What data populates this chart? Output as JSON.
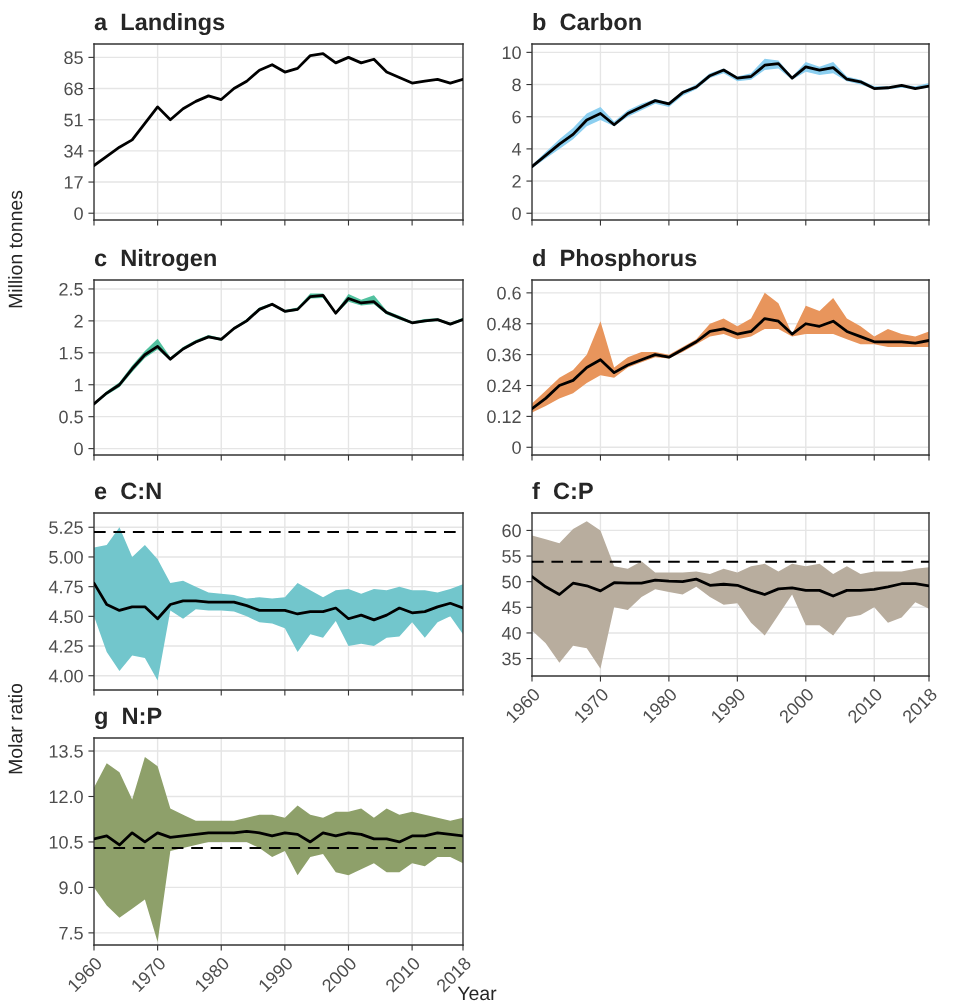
{
  "chart_data": [
    {
      "type": "line",
      "title": "a  Landings",
      "ylabel": "Million tonnes",
      "x": [
        1960,
        1962,
        1964,
        1966,
        1968,
        1970,
        1972,
        1974,
        1976,
        1978,
        1980,
        1982,
        1984,
        1986,
        1988,
        1990,
        1992,
        1994,
        1996,
        1998,
        2000,
        2002,
        2004,
        2006,
        2008,
        2010,
        2012,
        2014,
        2016,
        2018
      ],
      "xlim": [
        1960,
        2018
      ],
      "xticks": [
        {
          "value": 1960,
          "label": null
        },
        {
          "value": 1970,
          "label": null
        },
        {
          "value": 1980,
          "label": null
        },
        {
          "value": 1990,
          "label": null
        },
        {
          "value": 2000,
          "label": null
        },
        {
          "value": 2010,
          "label": null
        },
        {
          "value": 2018,
          "label": null
        }
      ],
      "ylim": [
        -3.7,
        92.3
      ],
      "yticks": [
        0,
        17,
        34,
        51,
        68,
        85
      ],
      "grid": true,
      "tick_labels": "y",
      "series": [
        {
          "color": "#000000",
          "values": [
            26,
            31,
            36,
            40,
            49,
            58,
            51,
            57,
            61,
            64,
            62,
            68,
            72,
            78,
            81,
            77,
            79,
            86,
            87,
            82,
            85,
            82,
            84,
            77,
            74,
            71,
            72,
            73,
            71,
            73
          ]
        }
      ]
    },
    {
      "type": "line",
      "title": "b  Carbon",
      "x": [
        1960,
        1962,
        1964,
        1966,
        1968,
        1970,
        1972,
        1974,
        1976,
        1978,
        1980,
        1982,
        1984,
        1986,
        1988,
        1990,
        1992,
        1994,
        1996,
        1998,
        2000,
        2002,
        2004,
        2006,
        2008,
        2010,
        2012,
        2014,
        2016,
        2018
      ],
      "xlim": [
        1960,
        2018
      ],
      "xticks": [
        {
          "value": 1960,
          "label": null
        },
        {
          "value": 1970,
          "label": null
        },
        {
          "value": 1980,
          "label": null
        },
        {
          "value": 1990,
          "label": null
        },
        {
          "value": 2000,
          "label": null
        },
        {
          "value": 2010,
          "label": null
        },
        {
          "value": 2018,
          "label": null
        }
      ],
      "ylim": [
        -0.42,
        10.52
      ],
      "yticks": [
        0,
        2,
        4,
        6,
        8,
        10
      ],
      "grid": true,
      "tick_labels": "y",
      "series": [
        {
          "color": "#000000",
          "lower": [
            2.8,
            3.4,
            4.0,
            4.6,
            5.4,
            5.8,
            5.4,
            6.0,
            6.4,
            6.8,
            6.6,
            7.3,
            7.7,
            8.4,
            8.7,
            8.2,
            8.3,
            8.9,
            9.0,
            8.3,
            8.8,
            8.6,
            8.7,
            8.2,
            8.0,
            7.7,
            7.7,
            7.8,
            7.7,
            7.8
          ],
          "upper": [
            3.0,
            3.8,
            4.6,
            5.3,
            6.2,
            6.6,
            5.7,
            6.4,
            6.8,
            7.1,
            6.9,
            7.6,
            8.0,
            8.7,
            9.0,
            8.5,
            8.7,
            9.6,
            9.5,
            8.5,
            9.4,
            9.1,
            9.4,
            8.5,
            8.3,
            7.9,
            7.9,
            8.0,
            7.9,
            8.1
          ],
          "values": [
            2.9,
            3.6,
            4.3,
            4.9,
            5.8,
            6.2,
            5.5,
            6.2,
            6.6,
            7.0,
            6.8,
            7.5,
            7.85,
            8.55,
            8.9,
            8.4,
            8.5,
            9.2,
            9.3,
            8.4,
            9.1,
            8.9,
            9.05,
            8.33,
            8.17,
            7.75,
            7.8,
            7.95,
            7.75,
            7.9
          ]
        }
      ]
    },
    {
      "type": "line",
      "title": "c  Nitrogen",
      "x": [
        1960,
        1962,
        1964,
        1966,
        1968,
        1970,
        1972,
        1974,
        1976,
        1978,
        1980,
        1982,
        1984,
        1986,
        1988,
        1990,
        1992,
        1994,
        1996,
        1998,
        2000,
        2002,
        2004,
        2006,
        2008,
        2010,
        2012,
        2014,
        2016,
        2018
      ],
      "xlim": [
        1960,
        2018
      ],
      "xticks": [
        {
          "value": 1960,
          "label": null
        },
        {
          "value": 1970,
          "label": null
        },
        {
          "value": 1980,
          "label": null
        },
        {
          "value": 1990,
          "label": null
        },
        {
          "value": 2000,
          "label": null
        },
        {
          "value": 2010,
          "label": null
        },
        {
          "value": 2018,
          "label": null
        }
      ],
      "ylim": [
        -0.1,
        2.64
      ],
      "yticks": [
        0,
        0.5,
        1,
        1.5,
        2,
        2.5
      ],
      "grid": true,
      "tick_labels": "y",
      "series": [
        {
          "color": "#000000",
          "lower": [
            0.68,
            0.84,
            0.96,
            1.2,
            1.42,
            1.55,
            1.38,
            1.54,
            1.65,
            1.73,
            1.69,
            1.86,
            1.98,
            2.16,
            2.24,
            2.13,
            2.16,
            2.35,
            2.36,
            2.1,
            2.3,
            2.24,
            2.26,
            2.1,
            2.02,
            1.95,
            1.98,
            2.0,
            1.93,
            2.0
          ],
          "upper": [
            0.72,
            0.9,
            1.04,
            1.3,
            1.53,
            1.72,
            1.43,
            1.59,
            1.7,
            1.78,
            1.73,
            1.9,
            2.03,
            2.21,
            2.28,
            2.17,
            2.21,
            2.43,
            2.43,
            2.14,
            2.42,
            2.33,
            2.4,
            2.16,
            2.08,
            1.99,
            2.03,
            2.04,
            1.97,
            2.05
          ],
          "values": [
            0.7,
            0.87,
            1.0,
            1.25,
            1.47,
            1.6,
            1.4,
            1.56,
            1.67,
            1.75,
            1.71,
            1.88,
            2.0,
            2.18,
            2.26,
            2.15,
            2.18,
            2.38,
            2.4,
            2.12,
            2.35,
            2.28,
            2.3,
            2.13,
            2.05,
            1.97,
            2.0,
            2.02,
            1.95,
            2.02
          ]
        }
      ]
    },
    {
      "type": "line",
      "title": "d  Phosphorus",
      "x": [
        1960,
        1962,
        1964,
        1966,
        1968,
        1970,
        1972,
        1974,
        1976,
        1978,
        1980,
        1982,
        1984,
        1986,
        1988,
        1990,
        1992,
        1994,
        1996,
        1998,
        2000,
        2002,
        2004,
        2006,
        2008,
        2010,
        2012,
        2014,
        2016,
        2018
      ],
      "xlim": [
        1960,
        2018
      ],
      "xticks": [
        {
          "value": 1960,
          "label": null
        },
        {
          "value": 1970,
          "label": null
        },
        {
          "value": 1980,
          "label": null
        },
        {
          "value": 1990,
          "label": null
        },
        {
          "value": 2000,
          "label": null
        },
        {
          "value": 2010,
          "label": null
        },
        {
          "value": 2018,
          "label": null
        }
      ],
      "ylim": [
        -0.03,
        0.65
      ],
      "yticks": [
        0,
        0.12,
        0.24,
        0.36,
        0.48,
        0.6
      ],
      "grid": true,
      "tick_labels": "y",
      "series": [
        {
          "color": "#000000",
          "lower": [
            0.135,
            0.16,
            0.19,
            0.21,
            0.25,
            0.28,
            0.27,
            0.31,
            0.33,
            0.35,
            0.345,
            0.37,
            0.4,
            0.43,
            0.44,
            0.42,
            0.43,
            0.46,
            0.46,
            0.43,
            0.44,
            0.44,
            0.44,
            0.42,
            0.4,
            0.4,
            0.39,
            0.39,
            0.39,
            0.39
          ],
          "upper": [
            0.17,
            0.22,
            0.27,
            0.3,
            0.36,
            0.49,
            0.31,
            0.35,
            0.37,
            0.37,
            0.36,
            0.39,
            0.42,
            0.48,
            0.5,
            0.47,
            0.5,
            0.6,
            0.56,
            0.44,
            0.55,
            0.53,
            0.58,
            0.5,
            0.47,
            0.43,
            0.46,
            0.44,
            0.43,
            0.45
          ],
          "values": [
            0.15,
            0.19,
            0.24,
            0.26,
            0.31,
            0.34,
            0.29,
            0.32,
            0.34,
            0.36,
            0.35,
            0.38,
            0.41,
            0.45,
            0.46,
            0.44,
            0.45,
            0.5,
            0.49,
            0.44,
            0.48,
            0.47,
            0.49,
            0.45,
            0.43,
            0.41,
            0.41,
            0.41,
            0.405,
            0.415
          ]
        }
      ]
    },
    {
      "type": "line",
      "title": "e  C:N",
      "ylabel": "Molar ratio",
      "x": [
        1960,
        1962,
        1964,
        1966,
        1968,
        1970,
        1972,
        1974,
        1976,
        1978,
        1980,
        1982,
        1984,
        1986,
        1988,
        1990,
        1992,
        1994,
        1996,
        1998,
        2000,
        2002,
        2004,
        2006,
        2008,
        2010,
        2012,
        2014,
        2016,
        2018
      ],
      "xlim": [
        1960,
        2018
      ],
      "xticks": [
        {
          "value": 1960,
          "label": null
        },
        {
          "value": 1970,
          "label": null
        },
        {
          "value": 1980,
          "label": null
        },
        {
          "value": 1990,
          "label": null
        },
        {
          "value": 2000,
          "label": null
        },
        {
          "value": 2010,
          "label": null
        },
        {
          "value": 2018,
          "label": null
        }
      ],
      "ylim": [
        3.88,
        5.37
      ],
      "yticks": [
        {
          "value": 4,
          "label": "4.00"
        },
        4.25,
        {
          "value": 4.5,
          "label": "4.50"
        },
        4.75,
        {
          "value": 5,
          "label": "5.00"
        },
        5.25
      ],
      "grid": true,
      "tick_labels": "y",
      "ref_lines": [
        {
          "axis": "y",
          "value": 5.21,
          "line_style": "dashed",
          "color": "#000000"
        }
      ],
      "series": [
        {
          "color": "#000000",
          "lower": [
            4.5,
            4.2,
            4.04,
            4.17,
            4.15,
            3.96,
            4.55,
            4.48,
            4.56,
            4.55,
            4.55,
            4.54,
            4.5,
            4.45,
            4.44,
            4.4,
            4.2,
            4.35,
            4.32,
            4.46,
            4.25,
            4.27,
            4.25,
            4.32,
            4.33,
            4.45,
            4.32,
            4.45,
            4.5,
            4.35
          ],
          "upper": [
            5.08,
            5.1,
            5.25,
            5.0,
            5.1,
            4.98,
            4.78,
            4.8,
            4.75,
            4.7,
            4.69,
            4.68,
            4.65,
            4.66,
            4.65,
            4.66,
            4.78,
            4.72,
            4.66,
            4.72,
            4.73,
            4.69,
            4.73,
            4.72,
            4.75,
            4.72,
            4.72,
            4.7,
            4.73,
            4.77
          ],
          "values": [
            4.78,
            4.6,
            4.55,
            4.58,
            4.58,
            4.48,
            4.6,
            4.63,
            4.63,
            4.62,
            4.62,
            4.62,
            4.59,
            4.55,
            4.55,
            4.55,
            4.52,
            4.54,
            4.54,
            4.57,
            4.48,
            4.51,
            4.47,
            4.51,
            4.57,
            4.53,
            4.54,
            4.58,
            4.61,
            4.57
          ]
        }
      ]
    },
    {
      "type": "line",
      "title": "f  C:P",
      "x": [
        1960,
        1962,
        1964,
        1966,
        1968,
        1970,
        1972,
        1974,
        1976,
        1978,
        1980,
        1982,
        1984,
        1986,
        1988,
        1990,
        1992,
        1994,
        1996,
        1998,
        2000,
        2002,
        2004,
        2006,
        2008,
        2010,
        2012,
        2014,
        2016,
        2018
      ],
      "xlim": [
        1960,
        2018
      ],
      "xticks": [
        1960,
        1970,
        1980,
        1990,
        2000,
        2010,
        2018
      ],
      "ylim": [
        31.6,
        63.4
      ],
      "yticks": [
        35,
        40,
        45,
        50,
        55,
        60
      ],
      "grid": true,
      "ref_lines": [
        {
          "axis": "y",
          "value": 53.9,
          "line_style": "dashed",
          "color": "#000000"
        }
      ],
      "series": [
        {
          "color": "#000000",
          "lower": [
            40.5,
            38,
            34.2,
            37.5,
            37,
            33,
            45,
            44.5,
            47,
            48.5,
            48,
            47.5,
            49,
            47,
            45.5,
            45.8,
            42,
            39.5,
            43.5,
            47.5,
            41.5,
            41.5,
            39.5,
            43,
            43.5,
            45,
            42,
            43,
            46,
            44.7
          ],
          "upper": [
            59,
            58.3,
            57.5,
            60.3,
            61.8,
            60,
            53,
            52.5,
            54,
            51.8,
            51.8,
            51.8,
            52,
            51.5,
            52.5,
            51.8,
            53,
            53.5,
            52,
            53.5,
            53,
            53.5,
            51.5,
            53,
            51.5,
            52,
            52,
            52,
            52.5,
            52.8
          ],
          "values": [
            51,
            49,
            47.5,
            49.7,
            49.2,
            48.2,
            49.8,
            49.7,
            49.7,
            50.3,
            50.1,
            50.0,
            50.5,
            49.3,
            49.5,
            49.3,
            48.3,
            47.5,
            48.6,
            48.8,
            48.3,
            48.3,
            47.2,
            48.3,
            48.3,
            48.5,
            49.0,
            49.6,
            49.6,
            49.2
          ]
        }
      ]
    },
    {
      "type": "line",
      "title": "g  N:P",
      "xlabel": "Year",
      "x": [
        1960,
        1962,
        1964,
        1966,
        1968,
        1970,
        1972,
        1974,
        1976,
        1978,
        1980,
        1982,
        1984,
        1986,
        1988,
        1990,
        1992,
        1994,
        1996,
        1998,
        2000,
        2002,
        2004,
        2006,
        2008,
        2010,
        2012,
        2014,
        2016,
        2018
      ],
      "xlim": [
        1960,
        2018
      ],
      "xticks": [
        1960,
        1970,
        1980,
        1990,
        2000,
        2010,
        2018
      ],
      "ylim": [
        7.1,
        13.93
      ],
      "yticks": [
        7.5,
        {
          "value": 9,
          "label": "9.0"
        },
        10.5,
        {
          "value": 12,
          "label": "12.0"
        },
        13.5
      ],
      "grid": true,
      "ref_lines": [
        {
          "axis": "y",
          "value": 10.3,
          "line_style": "dashed",
          "color": "#000000"
        }
      ],
      "series": [
        {
          "color": "#000000",
          "lower": [
            9.0,
            8.4,
            8.0,
            8.3,
            8.6,
            7.2,
            10.2,
            10.3,
            10.4,
            10.5,
            10.5,
            10.5,
            10.5,
            10.3,
            10.0,
            10.2,
            9.4,
            10.0,
            10.1,
            9.5,
            9.4,
            9.6,
            9.8,
            9.5,
            9.5,
            9.8,
            9.7,
            10.0,
            10.0,
            9.8
          ],
          "upper": [
            12.3,
            13.1,
            12.8,
            11.9,
            13.3,
            13.0,
            11.6,
            11.4,
            11.2,
            11.2,
            11.2,
            11.2,
            11.3,
            11.4,
            11.4,
            11.3,
            11.7,
            11.4,
            11.3,
            11.5,
            11.5,
            11.6,
            11.3,
            11.6,
            11.4,
            11.5,
            11.4,
            11.3,
            11.2,
            11.3
          ],
          "values": [
            10.6,
            10.7,
            10.4,
            10.8,
            10.5,
            10.8,
            10.65,
            10.7,
            10.75,
            10.8,
            10.8,
            10.8,
            10.85,
            10.8,
            10.7,
            10.8,
            10.75,
            10.5,
            10.8,
            10.7,
            10.8,
            10.75,
            10.6,
            10.6,
            10.5,
            10.7,
            10.7,
            10.8,
            10.75,
            10.7
          ]
        }
      ]
    }
  ]
}
